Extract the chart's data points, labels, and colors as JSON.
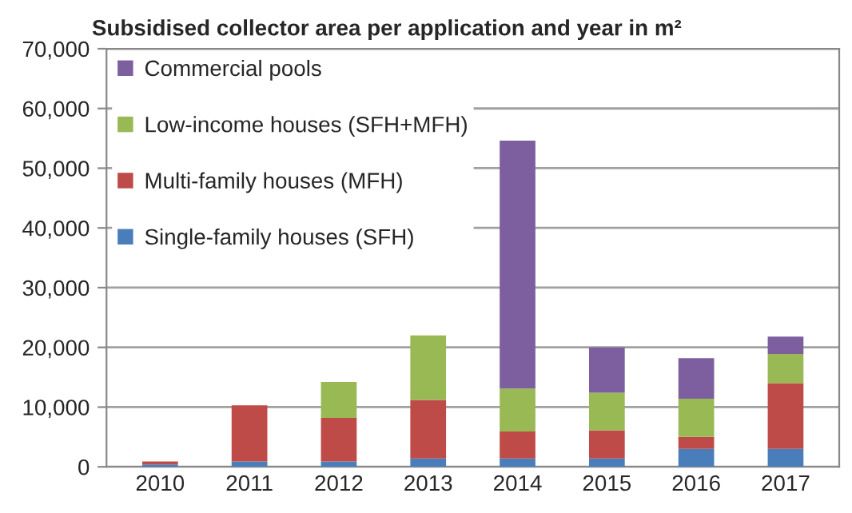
{
  "chart_data": {
    "type": "bar",
    "title": "Subsidised collector area per application and year in m²",
    "categories": [
      "2010",
      "2011",
      "2012",
      "2013",
      "2014",
      "2015",
      "2016",
      "2017"
    ],
    "stacked": true,
    "series": [
      {
        "name": "Single-family houses (SFH)",
        "color": "#4a7ebb",
        "values": [
          400,
          900,
          900,
          1400,
          1400,
          1400,
          3000,
          3000
        ]
      },
      {
        "name": "Multi-family houses (MFH)",
        "color": "#be4b48",
        "values": [
          500,
          9400,
          7300,
          9800,
          4500,
          4700,
          2000,
          11000
        ]
      },
      {
        "name": "Low-income houses (SFH+MFH)",
        "color": "#98b954",
        "values": [
          null,
          null,
          6000,
          10800,
          7200,
          6300,
          6400,
          4900
        ]
      },
      {
        "name": "Commercial pools",
        "color": "#7d5fa0",
        "values": [
          null,
          null,
          null,
          null,
          41500,
          7600,
          6800,
          2900
        ]
      }
    ],
    "ylim": [
      0,
      70000
    ],
    "yticks": [
      {
        "value": 0,
        "label": "0"
      },
      {
        "value": 10000,
        "label": "10,000"
      },
      {
        "value": 20000,
        "label": "20,000"
      },
      {
        "value": 30000,
        "label": "30,000"
      },
      {
        "value": 40000,
        "label": "40,000"
      },
      {
        "value": 50000,
        "label": "50,000"
      },
      {
        "value": 60000,
        "label": "60,000"
      },
      {
        "value": 70000,
        "label": "70,000"
      }
    ],
    "grid": "y",
    "legend": "top left"
  }
}
